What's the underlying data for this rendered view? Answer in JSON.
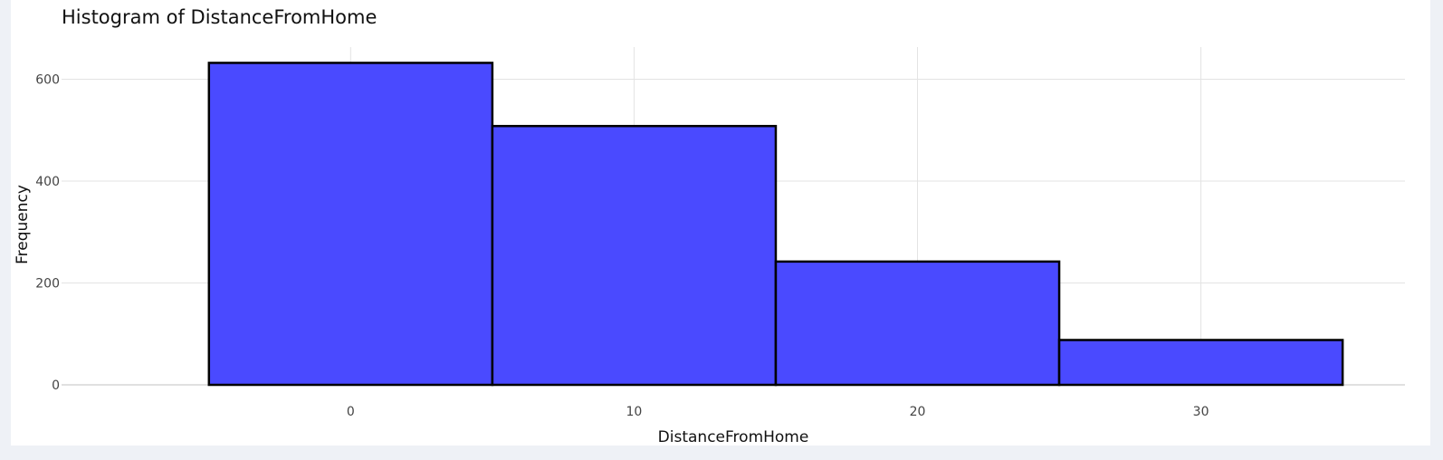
{
  "chart_data": {
    "type": "bar",
    "title": "Histogram of DistanceFromHome",
    "xlabel": "DistanceFromHome",
    "ylabel": "Frequency",
    "bins": [
      {
        "start": -5,
        "end": 5,
        "value": 632
      },
      {
        "start": 5,
        "end": 15,
        "value": 508
      },
      {
        "start": 15,
        "end": 25,
        "value": 242
      },
      {
        "start": 25,
        "end": 35,
        "value": 88
      }
    ],
    "xlim": [
      -10.2,
      37.2
    ],
    "ylim": [
      0,
      663
    ],
    "x_ticks": [
      0,
      10,
      20,
      30
    ],
    "y_ticks": [
      0,
      200,
      400,
      600
    ],
    "bar_color": "#4a4aff",
    "bar_edge_color": "#000000",
    "grid": true,
    "legend": "none"
  }
}
